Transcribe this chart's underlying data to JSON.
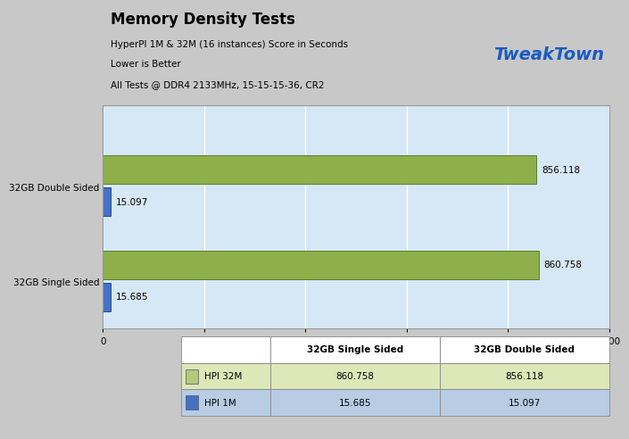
{
  "title": "Memory Density Tests",
  "subtitle1": "HyperPI 1M & 32M (16 instances) Score in Seconds",
  "subtitle2": "Lower is Better",
  "subtitle3": "All Tests @ DDR4 2133MHz, 15-15-15-36, CR2",
  "categories_top": "32GB Double Sided",
  "categories_bottom": "32GB Single Sided",
  "series": [
    {
      "name": "HPI 32M",
      "val_single": 860.758,
      "val_double": 856.118,
      "bar_color": "#8faf4a",
      "edge_color": "#5a7a30",
      "legend_color": "#b5c97a"
    },
    {
      "name": "HPI 1M",
      "val_single": 15.685,
      "val_double": 15.097,
      "bar_color": "#4472c4",
      "edge_color": "#2a4a8a",
      "legend_color": "#4472c4"
    }
  ],
  "xlim": [
    0,
    1000
  ],
  "xticks": [
    0,
    200,
    400,
    600,
    800,
    1000
  ],
  "header_bg": "#bebebe",
  "plot_area_bg": "#d6e8f5",
  "grid_color": "#ffffff",
  "outer_bg": "#c8c8c8",
  "table_row1_bg": "#dce8b8",
  "table_row2_bg": "#b8cce4",
  "table_header_bg": "#ffffff",
  "table_border": "#888888"
}
